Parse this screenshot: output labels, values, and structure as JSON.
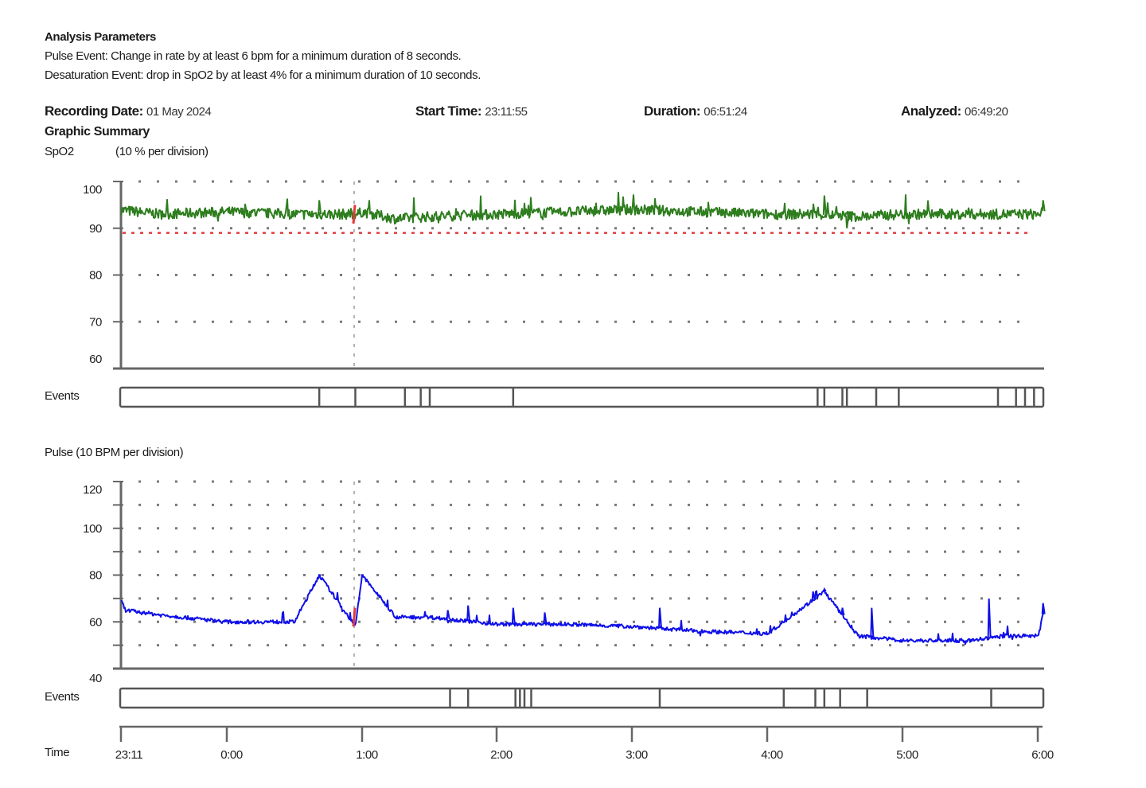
{
  "analysis": {
    "title": "Analysis Parameters",
    "pulse_event": "Pulse Event: Change in rate by at least 6 bpm for a minimum duration of 8 seconds.",
    "desat_event": "Desaturation Event: drop in SpO2 by at least 4% for a minimum duration of 10 seconds."
  },
  "header": {
    "recording_date_label": "Recording Date:",
    "recording_date": "01 May 2024",
    "start_time_label": "Start Time:",
    "start_time": "23:11:55",
    "duration_label": "Duration:",
    "duration": "06:51:24",
    "analyzed_label": "Analyzed:",
    "analyzed": "06:49:20"
  },
  "summary": {
    "title": "Graphic Summary",
    "spo2_label": "SpO2",
    "spo2_scale": "(10 %  per division)",
    "pulse_label": "Pulse (10 BPM per division)",
    "events_label": "Events",
    "time_label": "Time"
  },
  "colors": {
    "spo2": "#2e7d1e",
    "pulse": "#1010e8",
    "threshold": "#e23a3a",
    "grid": "#7a7a7a",
    "axis": "#666666",
    "event_marker": "#555555"
  },
  "chart_data": [
    {
      "type": "line",
      "title": "SpO2 (10 % per division)",
      "xlabel": "Time",
      "ylabel": "SpO2 %",
      "ylim": [
        60,
        100
      ],
      "yticks": [
        100,
        90,
        80,
        70,
        60
      ],
      "x_ticks": [
        "23:11",
        "0:00",
        "1:00",
        "2:00",
        "3:00",
        "4:00",
        "5:00",
        "6:00"
      ],
      "threshold": 89,
      "grid": "dotted",
      "series": [
        {
          "name": "SpO2",
          "color": "#2e7d1e",
          "x": [
            "23:11",
            "23:30",
            "0:00",
            "0:30",
            "0:58",
            "1:00",
            "1:15",
            "1:30",
            "2:00",
            "2:30",
            "3:00",
            "3:30",
            "4:00",
            "4:20",
            "4:40",
            "5:00",
            "5:30",
            "6:00",
            "6:03"
          ],
          "values": [
            94,
            93,
            93.5,
            93,
            93,
            93.5,
            92,
            92.5,
            93,
            93.5,
            94,
            93.5,
            93,
            93,
            92.5,
            93,
            93,
            93,
            94
          ]
        }
      ],
      "events_row": {
        "label": "Events",
        "marker_times": [
          "0:41",
          "0:57",
          "1:19",
          "1:26",
          "1:30",
          "2:07",
          "4:22",
          "4:25",
          "4:33",
          "4:35",
          "4:48",
          "4:58",
          "5:42",
          "5:50",
          "5:54",
          "5:58"
        ]
      },
      "annotation": {
        "type": "vertical-marker",
        "time": "0:57",
        "note": "red desaturation segment"
      }
    },
    {
      "type": "line",
      "title": "Pulse (10 BPM per division)",
      "xlabel": "Time",
      "ylabel": "BPM",
      "ylim": [
        40,
        120
      ],
      "yticks": [
        120,
        100,
        80,
        60,
        40
      ],
      "x_ticks": [
        "23:11",
        "0:00",
        "1:00",
        "2:00",
        "3:00",
        "4:00",
        "5:00",
        "6:00"
      ],
      "grid": "dotted",
      "series": [
        {
          "name": "Pulse",
          "color": "#1010e8",
          "x": [
            "23:11",
            "23:15",
            "23:30",
            "0:00",
            "0:30",
            "0:41",
            "0:57",
            "1:00",
            "1:15",
            "1:30",
            "2:00",
            "2:30",
            "3:00",
            "3:30",
            "4:00",
            "4:25",
            "4:40",
            "5:00",
            "5:30",
            "5:45",
            "6:00",
            "6:03"
          ],
          "values": [
            74,
            65,
            63,
            60,
            60,
            80,
            58,
            80,
            62,
            62,
            59,
            59,
            58,
            56,
            55,
            73,
            54,
            52,
            52,
            54,
            54,
            68
          ]
        }
      ],
      "events_row": {
        "label": "Events",
        "marker_times": [
          "1:39",
          "1:47",
          "2:08",
          "2:10",
          "2:12",
          "2:15",
          "3:12",
          "4:07",
          "4:21",
          "4:25",
          "4:32",
          "4:44",
          "5:39"
        ]
      }
    }
  ]
}
